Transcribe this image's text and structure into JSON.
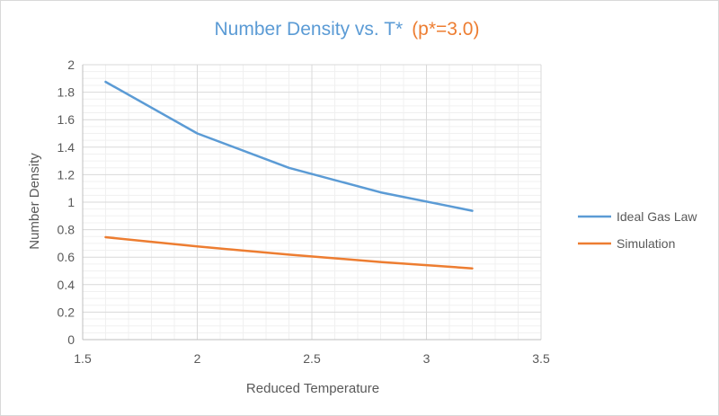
{
  "chart_data": {
    "type": "line",
    "title": "Number Density vs. T*",
    "title_suffix": "(p*=3.0)",
    "xlabel": "Reduced Temperature",
    "ylabel": "Number Density",
    "xlim": [
      1.5,
      3.5
    ],
    "ylim": [
      0,
      2
    ],
    "x_ticks": [
      "1.5",
      "2",
      "2.5",
      "3",
      "3.5"
    ],
    "y_ticks": [
      "0",
      "0.2",
      "0.4",
      "0.6",
      "0.8",
      "1",
      "1.2",
      "1.4",
      "1.6",
      "1.8",
      "2"
    ],
    "x_tick_values": [
      1.5,
      2,
      2.5,
      3,
      3.5
    ],
    "y_tick_values": [
      0,
      0.2,
      0.4,
      0.6,
      0.8,
      1,
      1.2,
      1.4,
      1.6,
      1.8,
      2
    ],
    "grid": true,
    "legend_position": "right",
    "x": [
      1.6,
      2.0,
      2.4,
      2.8,
      3.2
    ],
    "series": [
      {
        "name": "Ideal Gas Law",
        "color": "#5b9bd5",
        "values": [
          1.875,
          1.5,
          1.25,
          1.071,
          0.9375
        ]
      },
      {
        "name": "Simulation",
        "color": "#ed7d31",
        "values": [
          0.745,
          0.678,
          0.618,
          0.565,
          0.518
        ]
      }
    ]
  }
}
